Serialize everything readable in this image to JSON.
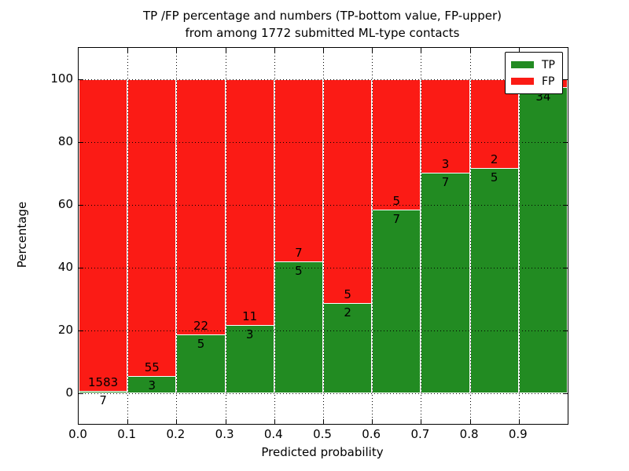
{
  "title": {
    "line1": "TP /FP percentage and numbers (TP-bottom value, FP-upper)",
    "line2": "from among 1772 submitted ML-type contacts"
  },
  "axes": {
    "xlabel": "Predicted probability",
    "ylabel": "Percentage",
    "yticks": [
      0,
      20,
      40,
      60,
      80,
      100
    ],
    "xtick_labels": [
      "0.0",
      "0.1",
      "0.2",
      "0.3",
      "0.4",
      "0.5",
      "0.6",
      "0.7",
      "0.8",
      "0.9"
    ],
    "xlim": [
      0.0,
      1.0
    ],
    "ylim": [
      -9.75,
      110
    ]
  },
  "legend": {
    "position": "upper right",
    "items": [
      {
        "label": "TP",
        "color": "#228b22"
      },
      {
        "label": "FP",
        "color": "#fb1b15"
      }
    ]
  },
  "chart_data": {
    "type": "bar",
    "stacked": true,
    "normalized_to_percent": 100,
    "title": "TP /FP percentage and numbers (TP-bottom value, FP-upper) from among 1772 submitted ML-type contacts",
    "xlabel": "Predicted probability",
    "ylabel": "Percentage",
    "total_contacts": 1772,
    "bin_width": 0.1,
    "bin_starts": [
      0.0,
      0.1,
      0.2,
      0.3,
      0.4,
      0.5,
      0.6,
      0.7,
      0.8,
      0.9
    ],
    "series": [
      {
        "name": "TP",
        "color": "#228b22",
        "counts": [
          7,
          3,
          5,
          3,
          5,
          2,
          7,
          7,
          5,
          34
        ],
        "visible_labels": [
          "7",
          "3",
          "5",
          "3",
          "5",
          "2",
          "7",
          "7",
          "5",
          "34"
        ]
      },
      {
        "name": "FP",
        "color": "#fb1b15",
        "counts": [
          1583,
          55,
          22,
          11,
          7,
          5,
          5,
          3,
          2,
          1
        ],
        "visible_labels": [
          "1583",
          "55",
          "22",
          "11",
          "7",
          "5",
          "5",
          "3",
          "2",
          ""
        ]
      }
    ],
    "tp_percent_of_bin": [
      0.44,
      5.17,
      18.52,
      21.43,
      41.67,
      28.57,
      58.33,
      70.0,
      71.43,
      97.14
    ],
    "grid": true,
    "grid_style": "dotted",
    "legend_position": "upper right"
  }
}
